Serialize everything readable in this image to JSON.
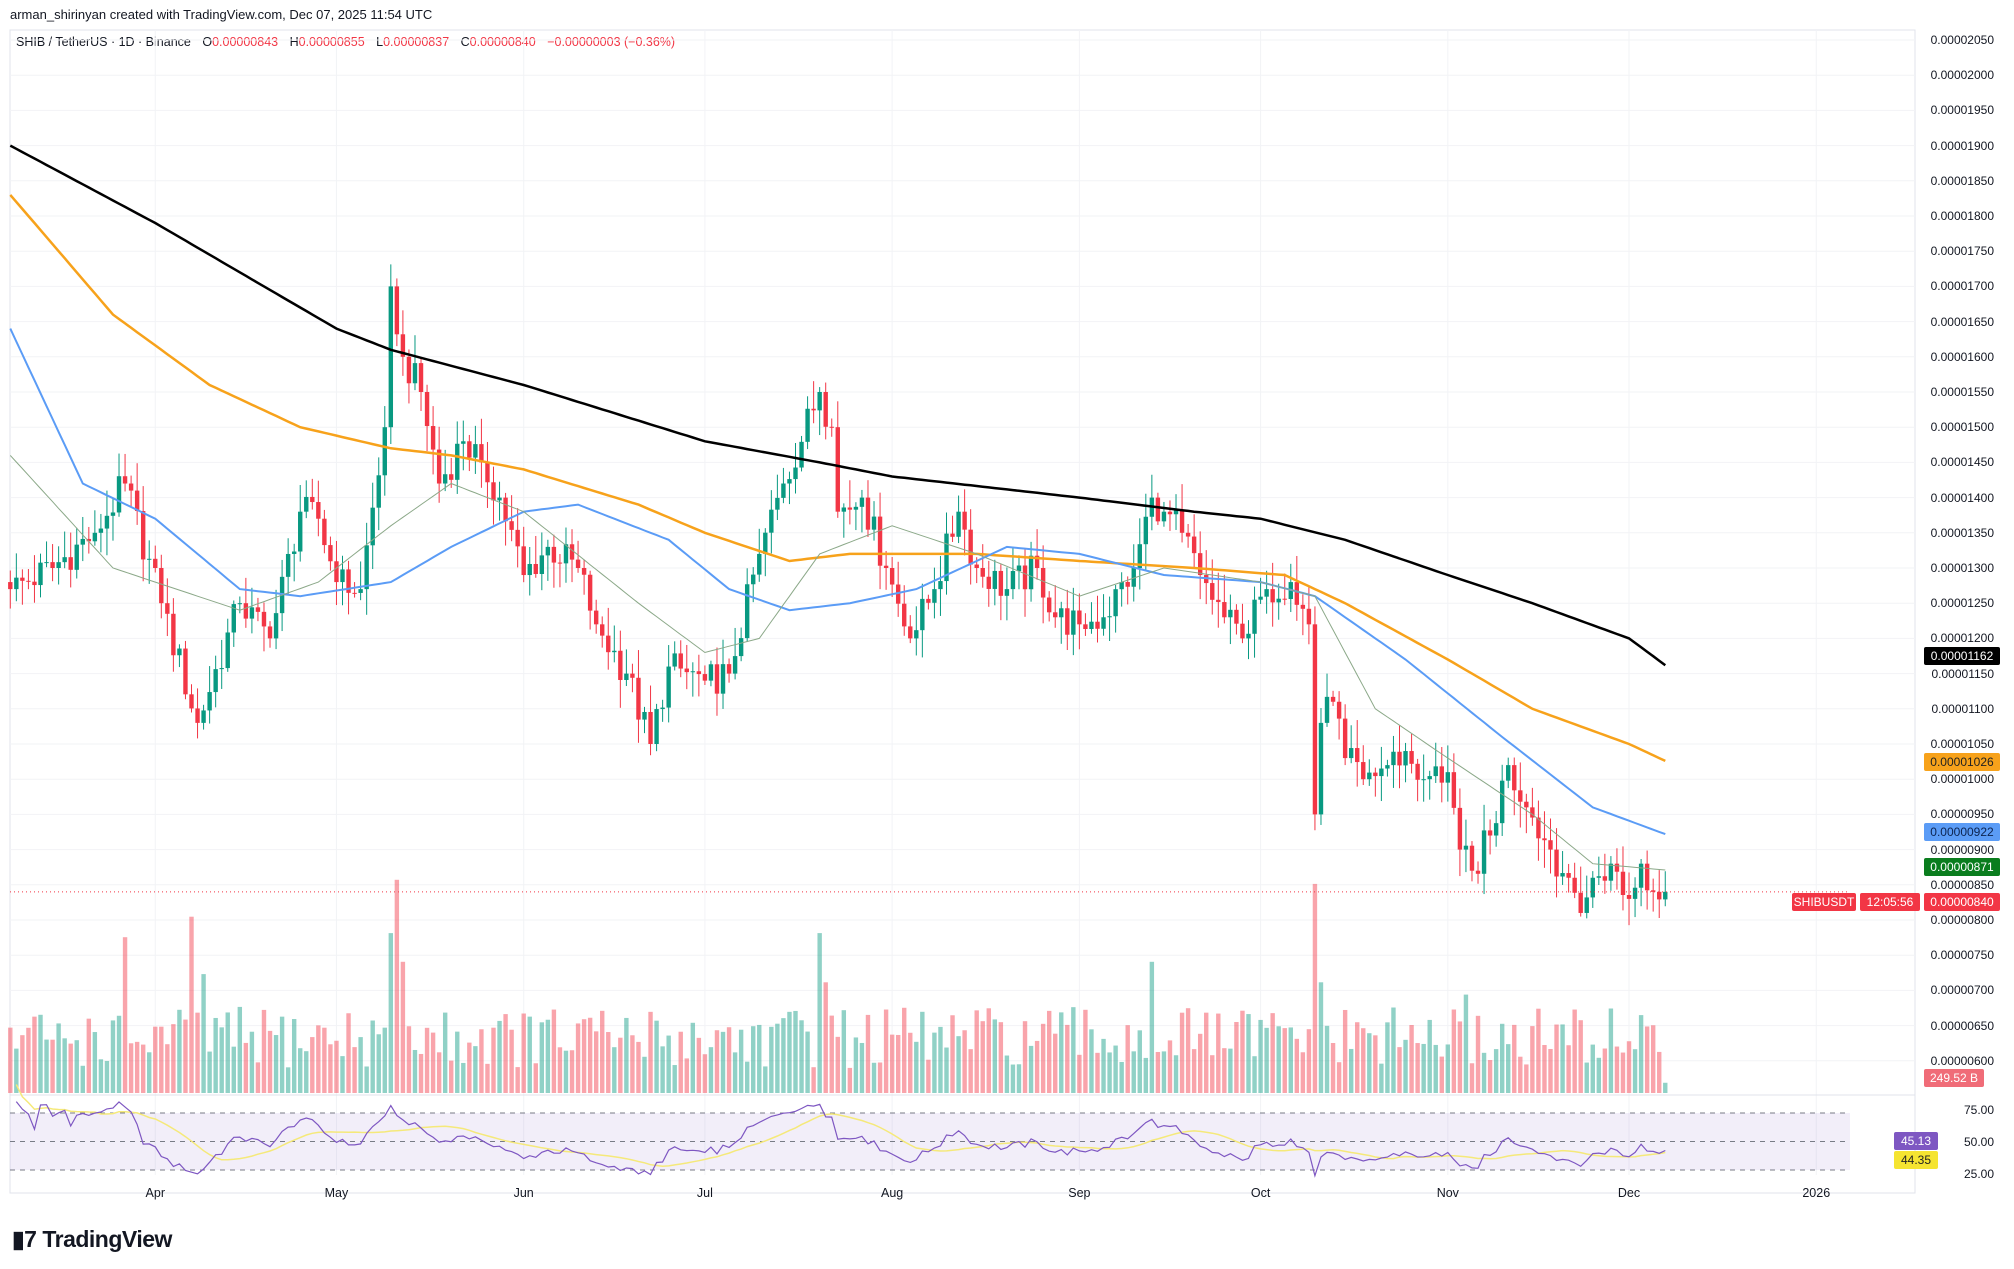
{
  "credit": "arman_shirinyan created with TradingView.com, Dec 07, 2025 11:54 UTC",
  "legend": {
    "symbol": "SHIB / TetherUS · 1D · Binance",
    "o_label": "O",
    "o": "0.00000843",
    "h_label": "H",
    "h": "0.00000855",
    "l_label": "L",
    "l": "0.00000837",
    "c_label": "C",
    "c": "0.00000840",
    "change": "−0.00000003 (−0.36%)"
  },
  "logo": "TradingView",
  "colors": {
    "up": "#089981",
    "down": "#f23645",
    "ma_black": "#000000",
    "ma_orange": "#f7a21b",
    "ma_blue": "#5b9cf6",
    "ma_green": "#8ba888",
    "rsi": "#7e57c2",
    "rsi_ma": "#f5e97a"
  },
  "tags": {
    "ma_black": "0.00001162",
    "ma_orange": "0.00001026",
    "ma_blue": "0.00000922",
    "ma_green": "0.00000871",
    "symbol": "SHIBUSDT",
    "last": "0.00000840",
    "countdown": "12:05:56",
    "volume": "249.52 B",
    "rsi": "45.13",
    "rsi_ma": "44.35"
  },
  "chart_data": {
    "type": "candlestick",
    "price_unit_note": "values in 1e-8 USDT",
    "ylim": [
      600,
      2050
    ],
    "y_ticks": [
      "0.00002050",
      "0.00002000",
      "0.00001950",
      "0.00001900",
      "0.00001850",
      "0.00001800",
      "0.00001750",
      "0.00001700",
      "0.00001650",
      "0.00001600",
      "0.00001550",
      "0.00001500",
      "0.00001450",
      "0.00001400",
      "0.00001350",
      "0.00001300",
      "0.00001250",
      "0.00001200",
      "0.00001150",
      "0.00001100",
      "0.00001050",
      "0.00001000",
      "0.00000950",
      "0.00000900",
      "0.00000850",
      "0.00000800",
      "0.00000750",
      "0.00000700",
      "0.00000650",
      "0.00000600"
    ],
    "x_ticks": [
      {
        "label": "Apr",
        "date": "2025-04-01"
      },
      {
        "label": "May",
        "date": "2025-05-01"
      },
      {
        "label": "Jun",
        "date": "2025-06-01"
      },
      {
        "label": "Jul",
        "date": "2025-07-01"
      },
      {
        "label": "Aug",
        "date": "2025-08-01"
      },
      {
        "label": "Sep",
        "date": "2025-09-01"
      },
      {
        "label": "Oct",
        "date": "2025-10-01"
      },
      {
        "label": "Nov",
        "date": "2025-11-01"
      },
      {
        "label": "Dec",
        "date": "2025-12-01"
      },
      {
        "label": "2026",
        "date": "2026-01-01"
      }
    ],
    "x_range": [
      "2025-03-08",
      "2026-02-10"
    ],
    "close_approx": [
      [
        "2025-03-08",
        1270
      ],
      [
        "2025-03-15",
        1300
      ],
      [
        "2025-03-22",
        1350
      ],
      [
        "2025-03-27",
        1420
      ],
      [
        "2025-04-02",
        1250
      ],
      [
        "2025-04-08",
        1080
      ],
      [
        "2025-04-15",
        1250
      ],
      [
        "2025-04-20",
        1200
      ],
      [
        "2025-04-25",
        1380
      ],
      [
        "2025-04-28",
        1370
      ],
      [
        "2025-05-01",
        1280
      ],
      [
        "2025-05-05",
        1270
      ],
      [
        "2025-05-09",
        1500
      ],
      [
        "2025-05-10",
        1700
      ],
      [
        "2025-05-12",
        1600
      ],
      [
        "2025-05-15",
        1550
      ],
      [
        "2025-05-18",
        1420
      ],
      [
        "2025-05-22",
        1480
      ],
      [
        "2025-05-25",
        1450
      ],
      [
        "2025-05-28",
        1400
      ],
      [
        "2025-06-01",
        1290
      ],
      [
        "2025-06-05",
        1330
      ],
      [
        "2025-06-10",
        1300
      ],
      [
        "2025-06-13",
        1220
      ],
      [
        "2025-06-18",
        1150
      ],
      [
        "2025-06-22",
        1050
      ],
      [
        "2025-06-25",
        1160
      ],
      [
        "2025-07-01",
        1140
      ],
      [
        "2025-07-05",
        1150
      ],
      [
        "2025-07-10",
        1320
      ],
      [
        "2025-07-14",
        1420
      ],
      [
        "2025-07-20",
        1550
      ],
      [
        "2025-07-22",
        1500
      ],
      [
        "2025-07-23",
        1380
      ],
      [
        "2025-07-27",
        1400
      ],
      [
        "2025-07-31",
        1300
      ],
      [
        "2025-08-04",
        1200
      ],
      [
        "2025-08-08",
        1270
      ],
      [
        "2025-08-12",
        1380
      ],
      [
        "2025-08-15",
        1300
      ],
      [
        "2025-08-20",
        1270
      ],
      [
        "2025-08-25",
        1300
      ],
      [
        "2025-08-28",
        1230
      ],
      [
        "2025-09-01",
        1220
      ],
      [
        "2025-09-05",
        1230
      ],
      [
        "2025-09-10",
        1300
      ],
      [
        "2025-09-13",
        1400
      ],
      [
        "2025-09-15",
        1380
      ],
      [
        "2025-09-18",
        1350
      ],
      [
        "2025-09-21",
        1290
      ],
      [
        "2025-09-25",
        1230
      ],
      [
        "2025-09-28",
        1200
      ],
      [
        "2025-10-02",
        1270
      ],
      [
        "2025-10-06",
        1280
      ],
      [
        "2025-10-09",
        1220
      ],
      [
        "2025-10-10",
        950
      ],
      [
        "2025-10-11",
        1080
      ],
      [
        "2025-10-13",
        1110
      ],
      [
        "2025-10-15",
        1030
      ],
      [
        "2025-10-18",
        1000
      ],
      [
        "2025-10-22",
        1020
      ],
      [
        "2025-10-25",
        1040
      ],
      [
        "2025-10-28",
        1000
      ],
      [
        "2025-11-01",
        1010
      ],
      [
        "2025-11-03",
        900
      ],
      [
        "2025-11-05",
        870
      ],
      [
        "2025-11-08",
        920
      ],
      [
        "2025-11-11",
        1020
      ],
      [
        "2025-11-14",
        960
      ],
      [
        "2025-11-18",
        900
      ],
      [
        "2025-11-21",
        860
      ],
      [
        "2025-11-23",
        810
      ],
      [
        "2025-11-25",
        860
      ],
      [
        "2025-11-28",
        880
      ],
      [
        "2025-12-01",
        830
      ],
      [
        "2025-12-03",
        880
      ],
      [
        "2025-12-05",
        840
      ],
      [
        "2025-12-07",
        840
      ]
    ],
    "ma_series": [
      {
        "key": "ma_black",
        "points": [
          [
            "2025-03-08",
            1900
          ],
          [
            "2025-04-01",
            1790
          ],
          [
            "2025-05-01",
            1640
          ],
          [
            "2025-05-10",
            1610
          ],
          [
            "2025-06-01",
            1560
          ],
          [
            "2025-07-01",
            1480
          ],
          [
            "2025-07-20",
            1450
          ],
          [
            "2025-08-01",
            1430
          ],
          [
            "2025-09-01",
            1400
          ],
          [
            "2025-09-20",
            1380
          ],
          [
            "2025-10-01",
            1370
          ],
          [
            "2025-10-15",
            1340
          ],
          [
            "2025-11-01",
            1290
          ],
          [
            "2025-11-15",
            1250
          ],
          [
            "2025-12-01",
            1200
          ],
          [
            "2025-12-07",
            1162
          ]
        ]
      },
      {
        "key": "ma_orange",
        "points": [
          [
            "2025-03-08",
            1830
          ],
          [
            "2025-03-25",
            1660
          ],
          [
            "2025-04-10",
            1560
          ],
          [
            "2025-04-25",
            1500
          ],
          [
            "2025-05-10",
            1470
          ],
          [
            "2025-05-20",
            1460
          ],
          [
            "2025-06-01",
            1440
          ],
          [
            "2025-06-20",
            1390
          ],
          [
            "2025-07-01",
            1350
          ],
          [
            "2025-07-15",
            1310
          ],
          [
            "2025-07-25",
            1320
          ],
          [
            "2025-08-15",
            1320
          ],
          [
            "2025-09-01",
            1310
          ],
          [
            "2025-09-20",
            1300
          ],
          [
            "2025-10-05",
            1290
          ],
          [
            "2025-10-15",
            1250
          ],
          [
            "2025-11-01",
            1170
          ],
          [
            "2025-11-15",
            1100
          ],
          [
            "2025-12-01",
            1050
          ],
          [
            "2025-12-07",
            1026
          ]
        ]
      },
      {
        "key": "ma_blue",
        "points": [
          [
            "2025-03-08",
            1640
          ],
          [
            "2025-03-20",
            1420
          ],
          [
            "2025-04-01",
            1370
          ],
          [
            "2025-04-15",
            1270
          ],
          [
            "2025-04-25",
            1260
          ],
          [
            "2025-05-10",
            1280
          ],
          [
            "2025-05-20",
            1330
          ],
          [
            "2025-06-01",
            1380
          ],
          [
            "2025-06-10",
            1390
          ],
          [
            "2025-06-25",
            1340
          ],
          [
            "2025-07-05",
            1270
          ],
          [
            "2025-07-15",
            1240
          ],
          [
            "2025-07-25",
            1250
          ],
          [
            "2025-08-05",
            1270
          ],
          [
            "2025-08-20",
            1330
          ],
          [
            "2025-09-01",
            1320
          ],
          [
            "2025-09-15",
            1290
          ],
          [
            "2025-10-01",
            1280
          ],
          [
            "2025-10-10",
            1260
          ],
          [
            "2025-10-25",
            1170
          ],
          [
            "2025-11-10",
            1060
          ],
          [
            "2025-11-25",
            960
          ],
          [
            "2025-12-07",
            922
          ]
        ]
      },
      {
        "key": "ma_green",
        "points": [
          [
            "2025-03-08",
            1460
          ],
          [
            "2025-03-25",
            1300
          ],
          [
            "2025-04-15",
            1240
          ],
          [
            "2025-04-28",
            1280
          ],
          [
            "2025-05-10",
            1360
          ],
          [
            "2025-05-20",
            1420
          ],
          [
            "2025-06-01",
            1380
          ],
          [
            "2025-06-20",
            1250
          ],
          [
            "2025-07-01",
            1180
          ],
          [
            "2025-07-10",
            1200
          ],
          [
            "2025-07-20",
            1320
          ],
          [
            "2025-08-01",
            1360
          ],
          [
            "2025-08-15",
            1320
          ],
          [
            "2025-09-01",
            1260
          ],
          [
            "2025-09-15",
            1300
          ],
          [
            "2025-10-01",
            1280
          ],
          [
            "2025-10-10",
            1260
          ],
          [
            "2025-10-20",
            1100
          ],
          [
            "2025-11-01",
            1030
          ],
          [
            "2025-11-15",
            950
          ],
          [
            "2025-11-25",
            880
          ],
          [
            "2025-12-07",
            871
          ]
        ]
      }
    ],
    "volume_unit": "B",
    "volume_spikes": [
      [
        "2025-03-27",
        3800
      ],
      [
        "2025-04-07",
        4300
      ],
      [
        "2025-04-09",
        2900
      ],
      [
        "2025-05-10",
        3900
      ],
      [
        "2025-05-11",
        5200
      ],
      [
        "2025-05-12",
        3200
      ],
      [
        "2025-07-20",
        3900
      ],
      [
        "2025-07-21",
        2700
      ],
      [
        "2025-09-13",
        3200
      ],
      [
        "2025-10-10",
        5100
      ],
      [
        "2025-10-11",
        2700
      ],
      [
        "2025-11-04",
        2400
      ],
      [
        "2025-12-03",
        1900
      ],
      [
        "2025-12-07",
        249.52
      ]
    ],
    "rsi_levels": {
      "upper": "75.00",
      "mid": "50.00",
      "lower": "25.00"
    }
  }
}
